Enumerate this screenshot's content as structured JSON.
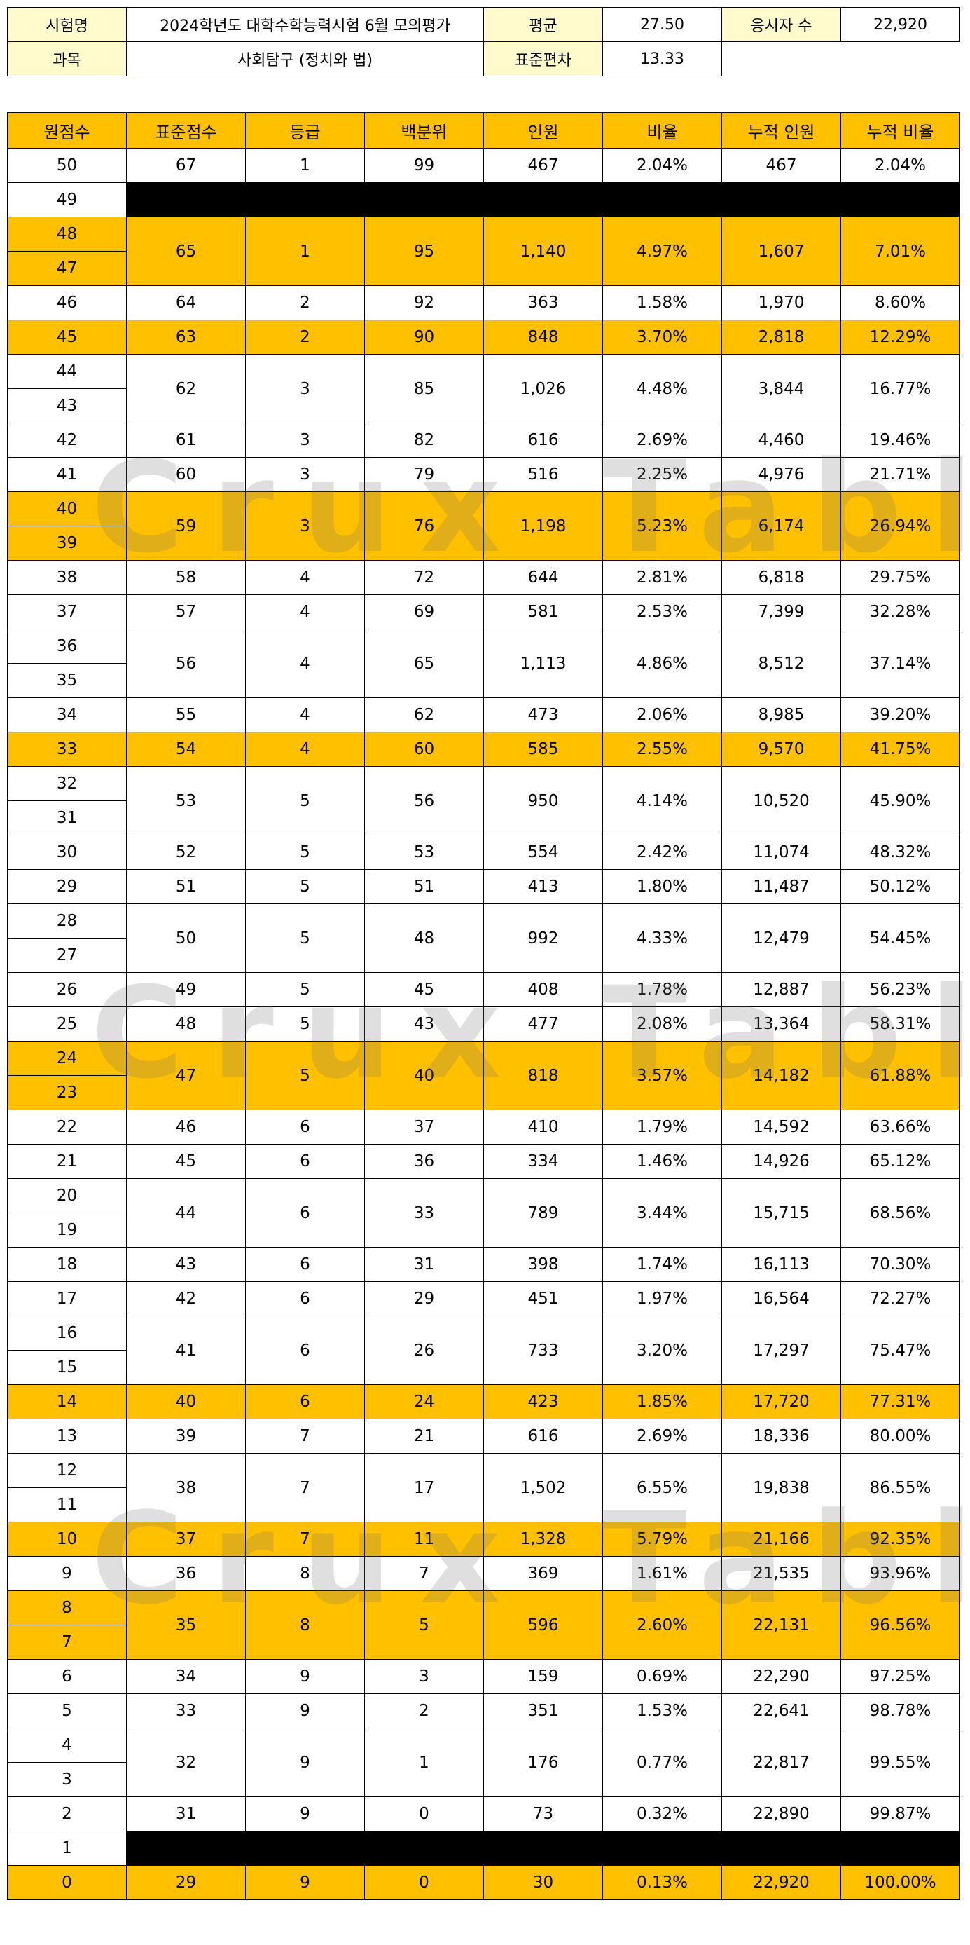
{
  "info": {
    "exam_label": "시험명",
    "exam_name": "2024학년도 대학수학능력시험 6월 모의평가",
    "mean_label": "평균",
    "mean_value": "27.50",
    "count_label": "응시자 수",
    "count_value": "22,920",
    "subject_label": "과목",
    "subject_name": "사회탐구 (정치와 법)",
    "sd_label": "표준편차",
    "sd_value": "13.33"
  },
  "headers": [
    "원점수",
    "표준점수",
    "등급",
    "백분위",
    "인원",
    "비율",
    "누적 인원",
    "누적 비율"
  ],
  "watermark": "Crux Table",
  "rows": [
    {
      "scores": [
        "50"
      ],
      "std": "67",
      "grade": "1",
      "pct": "99",
      "n": "467",
      "ratio": "2.04%",
      "cum": "467",
      "cumr": "2.04%",
      "hl": false
    },
    {
      "scores": [
        "49"
      ],
      "blank": true
    },
    {
      "scores": [
        "48",
        "47"
      ],
      "std": "65",
      "grade": "1",
      "pct": "95",
      "n": "1,140",
      "ratio": "4.97%",
      "cum": "1,607",
      "cumr": "7.01%",
      "hl": true
    },
    {
      "scores": [
        "46"
      ],
      "std": "64",
      "grade": "2",
      "pct": "92",
      "n": "363",
      "ratio": "1.58%",
      "cum": "1,970",
      "cumr": "8.60%",
      "hl": false
    },
    {
      "scores": [
        "45"
      ],
      "std": "63",
      "grade": "2",
      "pct": "90",
      "n": "848",
      "ratio": "3.70%",
      "cum": "2,818",
      "cumr": "12.29%",
      "hl": true
    },
    {
      "scores": [
        "44",
        "43"
      ],
      "std": "62",
      "grade": "3",
      "pct": "85",
      "n": "1,026",
      "ratio": "4.48%",
      "cum": "3,844",
      "cumr": "16.77%",
      "hl": false
    },
    {
      "scores": [
        "42"
      ],
      "std": "61",
      "grade": "3",
      "pct": "82",
      "n": "616",
      "ratio": "2.69%",
      "cum": "4,460",
      "cumr": "19.46%",
      "hl": false
    },
    {
      "scores": [
        "41"
      ],
      "std": "60",
      "grade": "3",
      "pct": "79",
      "n": "516",
      "ratio": "2.25%",
      "cum": "4,976",
      "cumr": "21.71%",
      "hl": false
    },
    {
      "scores": [
        "40",
        "39"
      ],
      "std": "59",
      "grade": "3",
      "pct": "76",
      "n": "1,198",
      "ratio": "5.23%",
      "cum": "6,174",
      "cumr": "26.94%",
      "hl": true
    },
    {
      "scores": [
        "38"
      ],
      "std": "58",
      "grade": "4",
      "pct": "72",
      "n": "644",
      "ratio": "2.81%",
      "cum": "6,818",
      "cumr": "29.75%",
      "hl": false
    },
    {
      "scores": [
        "37"
      ],
      "std": "57",
      "grade": "4",
      "pct": "69",
      "n": "581",
      "ratio": "2.53%",
      "cum": "7,399",
      "cumr": "32.28%",
      "hl": false
    },
    {
      "scores": [
        "36",
        "35"
      ],
      "std": "56",
      "grade": "4",
      "pct": "65",
      "n": "1,113",
      "ratio": "4.86%",
      "cum": "8,512",
      "cumr": "37.14%",
      "hl": false
    },
    {
      "scores": [
        "34"
      ],
      "std": "55",
      "grade": "4",
      "pct": "62",
      "n": "473",
      "ratio": "2.06%",
      "cum": "8,985",
      "cumr": "39.20%",
      "hl": false
    },
    {
      "scores": [
        "33"
      ],
      "std": "54",
      "grade": "4",
      "pct": "60",
      "n": "585",
      "ratio": "2.55%",
      "cum": "9,570",
      "cumr": "41.75%",
      "hl": true
    },
    {
      "scores": [
        "32",
        "31"
      ],
      "std": "53",
      "grade": "5",
      "pct": "56",
      "n": "950",
      "ratio": "4.14%",
      "cum": "10,520",
      "cumr": "45.90%",
      "hl": false
    },
    {
      "scores": [
        "30"
      ],
      "std": "52",
      "grade": "5",
      "pct": "53",
      "n": "554",
      "ratio": "2.42%",
      "cum": "11,074",
      "cumr": "48.32%",
      "hl": false
    },
    {
      "scores": [
        "29"
      ],
      "std": "51",
      "grade": "5",
      "pct": "51",
      "n": "413",
      "ratio": "1.80%",
      "cum": "11,487",
      "cumr": "50.12%",
      "hl": false
    },
    {
      "scores": [
        "28",
        "27"
      ],
      "std": "50",
      "grade": "5",
      "pct": "48",
      "n": "992",
      "ratio": "4.33%",
      "cum": "12,479",
      "cumr": "54.45%",
      "hl": false
    },
    {
      "scores": [
        "26"
      ],
      "std": "49",
      "grade": "5",
      "pct": "45",
      "n": "408",
      "ratio": "1.78%",
      "cum": "12,887",
      "cumr": "56.23%",
      "hl": false
    },
    {
      "scores": [
        "25"
      ],
      "std": "48",
      "grade": "5",
      "pct": "43",
      "n": "477",
      "ratio": "2.08%",
      "cum": "13,364",
      "cumr": "58.31%",
      "hl": false
    },
    {
      "scores": [
        "24",
        "23"
      ],
      "std": "47",
      "grade": "5",
      "pct": "40",
      "n": "818",
      "ratio": "3.57%",
      "cum": "14,182",
      "cumr": "61.88%",
      "hl": true
    },
    {
      "scores": [
        "22"
      ],
      "std": "46",
      "grade": "6",
      "pct": "37",
      "n": "410",
      "ratio": "1.79%",
      "cum": "14,592",
      "cumr": "63.66%",
      "hl": false
    },
    {
      "scores": [
        "21"
      ],
      "std": "45",
      "grade": "6",
      "pct": "36",
      "n": "334",
      "ratio": "1.46%",
      "cum": "14,926",
      "cumr": "65.12%",
      "hl": false
    },
    {
      "scores": [
        "20",
        "19"
      ],
      "std": "44",
      "grade": "6",
      "pct": "33",
      "n": "789",
      "ratio": "3.44%",
      "cum": "15,715",
      "cumr": "68.56%",
      "hl": false
    },
    {
      "scores": [
        "18"
      ],
      "std": "43",
      "grade": "6",
      "pct": "31",
      "n": "398",
      "ratio": "1.74%",
      "cum": "16,113",
      "cumr": "70.30%",
      "hl": false
    },
    {
      "scores": [
        "17"
      ],
      "std": "42",
      "grade": "6",
      "pct": "29",
      "n": "451",
      "ratio": "1.97%",
      "cum": "16,564",
      "cumr": "72.27%",
      "hl": false
    },
    {
      "scores": [
        "16",
        "15"
      ],
      "std": "41",
      "grade": "6",
      "pct": "26",
      "n": "733",
      "ratio": "3.20%",
      "cum": "17,297",
      "cumr": "75.47%",
      "hl": false
    },
    {
      "scores": [
        "14"
      ],
      "std": "40",
      "grade": "6",
      "pct": "24",
      "n": "423",
      "ratio": "1.85%",
      "cum": "17,720",
      "cumr": "77.31%",
      "hl": true
    },
    {
      "scores": [
        "13"
      ],
      "std": "39",
      "grade": "7",
      "pct": "21",
      "n": "616",
      "ratio": "2.69%",
      "cum": "18,336",
      "cumr": "80.00%",
      "hl": false
    },
    {
      "scores": [
        "12",
        "11"
      ],
      "std": "38",
      "grade": "7",
      "pct": "17",
      "n": "1,502",
      "ratio": "6.55%",
      "cum": "19,838",
      "cumr": "86.55%",
      "hl": false
    },
    {
      "scores": [
        "10"
      ],
      "std": "37",
      "grade": "7",
      "pct": "11",
      "n": "1,328",
      "ratio": "5.79%",
      "cum": "21,166",
      "cumr": "92.35%",
      "hl": true
    },
    {
      "scores": [
        "9"
      ],
      "std": "36",
      "grade": "8",
      "pct": "7",
      "n": "369",
      "ratio": "1.61%",
      "cum": "21,535",
      "cumr": "93.96%",
      "hl": false
    },
    {
      "scores": [
        "8",
        "7"
      ],
      "std": "35",
      "grade": "8",
      "pct": "5",
      "n": "596",
      "ratio": "2.60%",
      "cum": "22,131",
      "cumr": "96.56%",
      "hl": true
    },
    {
      "scores": [
        "6"
      ],
      "std": "34",
      "grade": "9",
      "pct": "3",
      "n": "159",
      "ratio": "0.69%",
      "cum": "22,290",
      "cumr": "97.25%",
      "hl": false
    },
    {
      "scores": [
        "5"
      ],
      "std": "33",
      "grade": "9",
      "pct": "2",
      "n": "351",
      "ratio": "1.53%",
      "cum": "22,641",
      "cumr": "98.78%",
      "hl": false
    },
    {
      "scores": [
        "4",
        "3"
      ],
      "std": "32",
      "grade": "9",
      "pct": "1",
      "n": "176",
      "ratio": "0.77%",
      "cum": "22,817",
      "cumr": "99.55%",
      "hl": false
    },
    {
      "scores": [
        "2"
      ],
      "std": "31",
      "grade": "9",
      "pct": "0",
      "n": "73",
      "ratio": "0.32%",
      "cum": "22,890",
      "cumr": "99.87%",
      "hl": false
    },
    {
      "scores": [
        "1"
      ],
      "blank": true
    },
    {
      "scores": [
        "0"
      ],
      "std": "29",
      "grade": "9",
      "pct": "0",
      "n": "30",
      "ratio": "0.13%",
      "cum": "22,920",
      "cumr": "100.00%",
      "hl": true
    }
  ]
}
